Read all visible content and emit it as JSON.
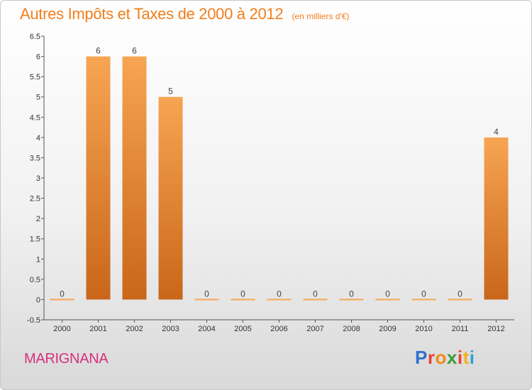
{
  "header": {
    "title": "Autres Impôts et Taxes de 2000 à 2012",
    "subtitle": "(en milliers d'€)"
  },
  "footer": {
    "town": "MARIGNANA",
    "logo": "Proxiti",
    "logo_colors": [
      "#2f6fce",
      "#e8412e",
      "#f08c1c",
      "#3a9c3a",
      "#e8412e",
      "#f2b01e",
      "#2f9fd8"
    ]
  },
  "chart_data": {
    "type": "bar",
    "categories": [
      "2000",
      "2001",
      "2002",
      "2003",
      "2004",
      "2005",
      "2006",
      "2007",
      "2008",
      "2009",
      "2010",
      "2011",
      "2012"
    ],
    "values": [
      0,
      6,
      6,
      5,
      0,
      0,
      0,
      0,
      0,
      0,
      0,
      0,
      4
    ],
    "data_labels": [
      "0",
      "6",
      "6",
      "5",
      "0",
      "0",
      "0",
      "0",
      "0",
      "0",
      "0",
      "0",
      "4"
    ],
    "ylim": [
      -0.5,
      6.5
    ],
    "yticks": [
      "-0.5",
      "0",
      "0.5",
      "1",
      "1.5",
      "2",
      "2.5",
      "3",
      "3.5",
      "4",
      "4.5",
      "5",
      "5.5",
      "6",
      "6.5"
    ],
    "ytick_values": [
      -0.5,
      0,
      0.5,
      1,
      1.5,
      2,
      2.5,
      3,
      3.5,
      4,
      4.5,
      5,
      5.5,
      6,
      6.5
    ],
    "grid": false,
    "bar_color_top": "#f7a552",
    "bar_color_bottom": "#c9661a",
    "title_color": "#f07e1c",
    "town_color": "#d7307a"
  }
}
